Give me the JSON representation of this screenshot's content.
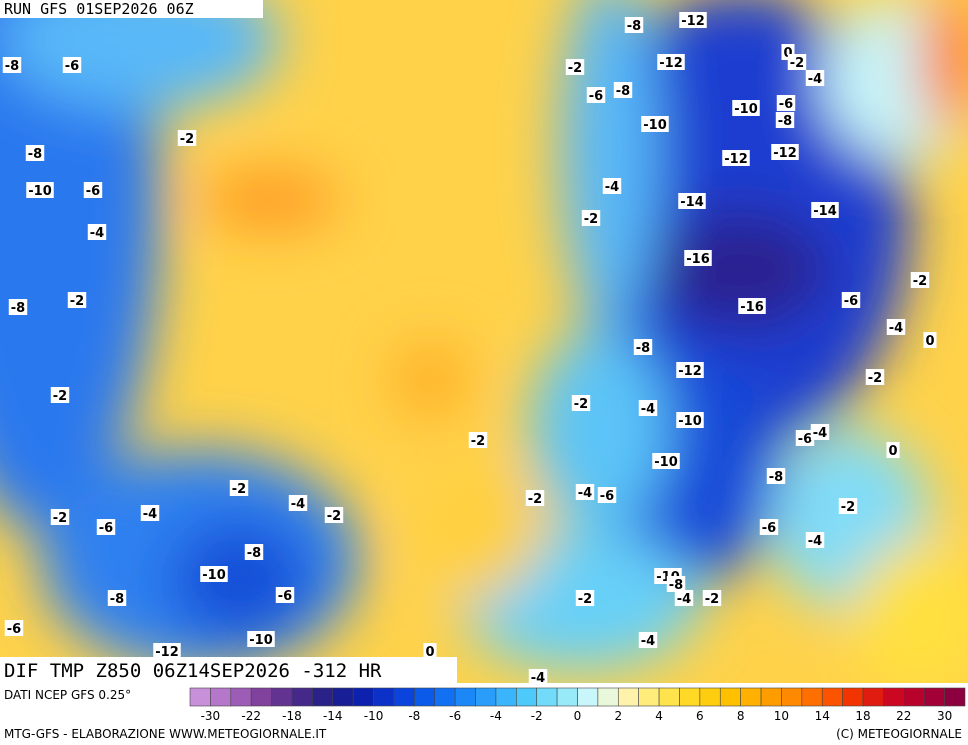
{
  "header": {
    "run": "RUN GFS 01SEP2026 06Z",
    "field": "DIF TMP Z850 06Z14SEP2026 -312 HR"
  },
  "footer": {
    "source": "DATI NCEP GFS 0.25°",
    "credit": "MTG-GFS - ELABORAZIONE WWW.METEOGIORNALE.IT",
    "copyright": "(C) METEOGIORNALE"
  },
  "contour_labels": [
    -8,
    -6,
    -2,
    -8,
    -10,
    -6,
    -4,
    -8,
    -2,
    -2,
    -12,
    -8,
    -12,
    -2,
    -6,
    -8,
    0,
    -2,
    -4,
    -10,
    -10,
    -6,
    -8,
    -12,
    -12,
    -4,
    -2,
    -14,
    -14,
    -16,
    -16,
    -2,
    -6,
    -4,
    0,
    -8,
    -12,
    -2,
    -4,
    -10,
    -2,
    -2,
    -6,
    -4,
    0,
    -10,
    -8,
    -2,
    -4,
    -2,
    -2,
    -4,
    -6,
    -2,
    -6,
    -4,
    -6,
    -2,
    -4,
    -8,
    -10,
    -8,
    -6,
    -10,
    -8,
    -4,
    -2,
    -2,
    -6,
    -12,
    -10,
    -4,
    0,
    -4
  ],
  "colorbar": {
    "ticks": [
      -30,
      -22,
      -18,
      -14,
      -10,
      -8,
      -6,
      -4,
      -2,
      0,
      2,
      4,
      6,
      8,
      10,
      14,
      18,
      22,
      30
    ],
    "colors": [
      "#c890d8",
      "#a868c0",
      "#7a3c98",
      "#4a2a8a",
      "#1e1e88",
      "#0c22b0",
      "#0a3cd8",
      "#0c60ee",
      "#1a84f6",
      "#30a8fa",
      "#50ccfa",
      "#8ae6f8",
      "#d8fafa",
      "#fff4b0",
      "#ffe860",
      "#ffd820",
      "#ffc400",
      "#ffaa00",
      "#ff8a00",
      "#ff6000",
      "#f03000",
      "#d00820",
      "#b00030",
      "#8c0040"
    ]
  }
}
